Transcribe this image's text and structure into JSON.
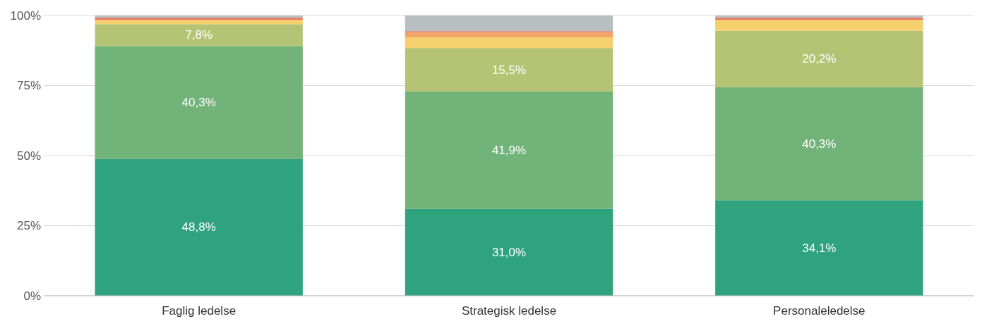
{
  "chart_data": {
    "type": "bar",
    "stacked": true,
    "categories": [
      "Faglig ledelse",
      "Strategisk ledelse",
      "Personaleledelse"
    ],
    "series": [
      {
        "color": "#2ea37d",
        "values": [
          48.8,
          31.0,
          34.1
        ],
        "value_labels": [
          "48,8%",
          "31,0%",
          "34,1%"
        ]
      },
      {
        "color": "#71b378",
        "values": [
          40.3,
          41.9,
          40.3
        ],
        "value_labels": [
          "40,3%",
          "41,9%",
          "40,3%"
        ]
      },
      {
        "color": "#b5c375",
        "values": [
          7.8,
          15.5,
          20.2
        ],
        "value_labels": [
          "7,8%",
          "15,5%",
          "20,2%"
        ]
      },
      {
        "color": "#f5d06c",
        "values": [
          1.5,
          3.8,
          3.8
        ]
      },
      {
        "color": "#f2a766",
        "values": [
          0,
          1.7,
          0
        ]
      },
      {
        "color": "#e9775d",
        "values": [
          0.8,
          0.5,
          0.8
        ]
      },
      {
        "color": "#b7bfc1",
        "values": [
          0.8,
          5.6,
          0.8
        ]
      }
    ],
    "ylim": [
      0,
      100
    ],
    "yticks": [
      {
        "value": 0,
        "label": "0%"
      },
      {
        "value": 25,
        "label": "25%"
      },
      {
        "value": 50,
        "label": "50%"
      },
      {
        "value": 75,
        "label": "75%"
      },
      {
        "value": 100,
        "label": "100%"
      }
    ],
    "grid": "y"
  }
}
